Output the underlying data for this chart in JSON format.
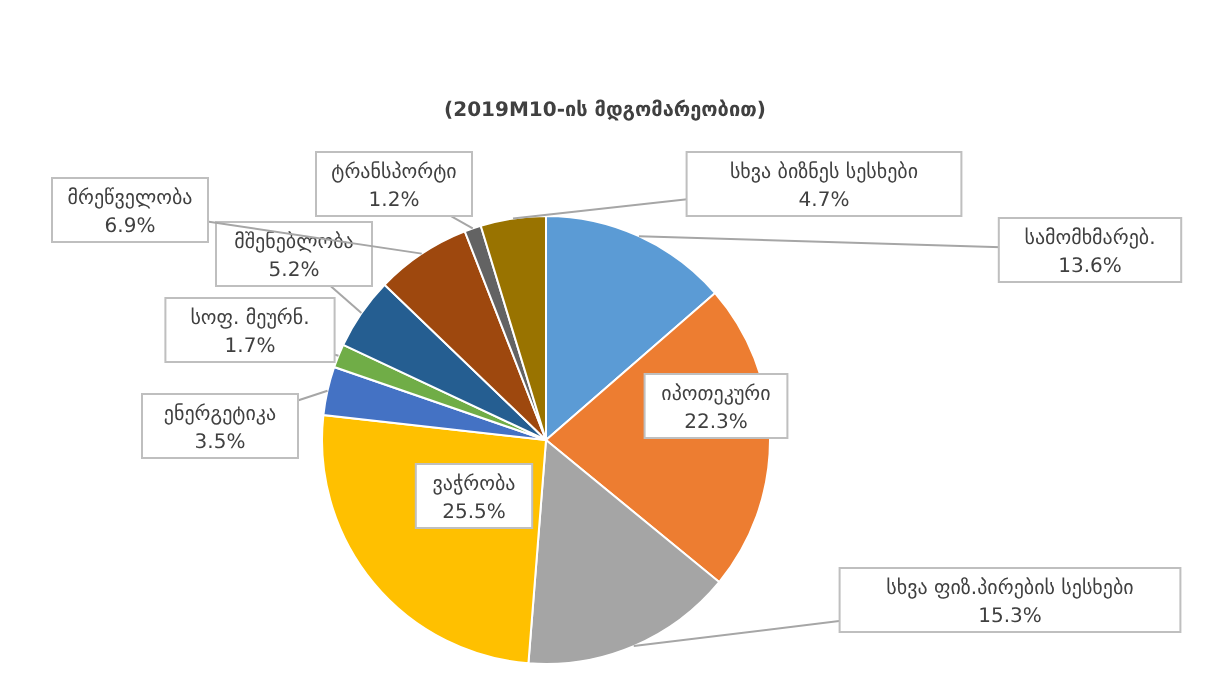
{
  "chart_data": {
    "type": "pie",
    "title": "(2019M10-ის მდგომარეობით)",
    "categories": [
      "სამომხმარებ.",
      "იპოთეკური",
      "სხვა ფიზ.პირების სესხები",
      "ვაჭრობა",
      "ენერგეტიკა",
      "სოფ. მეურნ.",
      "მშენებლობა",
      "მრეწველობა",
      "ტრანსპორტი",
      "სხვა ბიზნეს სესხები"
    ],
    "values": [
      13.6,
      22.3,
      15.3,
      25.5,
      3.5,
      1.7,
      5.2,
      6.9,
      1.2,
      4.7
    ],
    "value_labels": [
      "13.6%",
      "22.3%",
      "15.3%",
      "25.5%",
      "3.5%",
      "1.7%",
      "5.2%",
      "6.9%",
      "1.2%",
      "4.7%"
    ],
    "colors": [
      "#5b9bd5",
      "#ed7d31",
      "#a5a5a5",
      "#ffc000",
      "#4472c4",
      "#70ad47",
      "#255e91",
      "#9e480e",
      "#636363",
      "#997300"
    ],
    "legend": false
  }
}
